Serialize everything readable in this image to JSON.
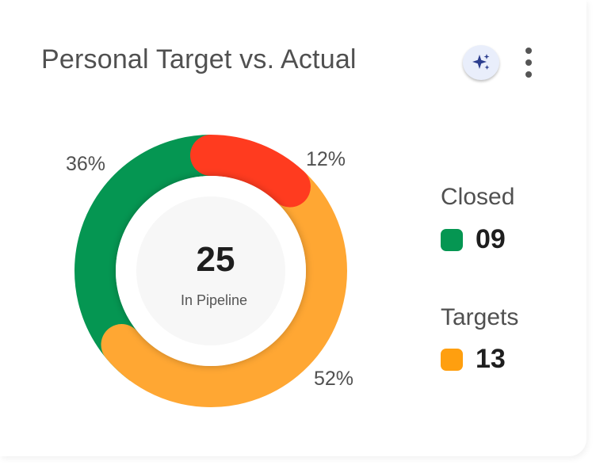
{
  "header": {
    "title": "Personal Target vs. Actual",
    "ai_icon": "sparkles-icon",
    "menu_icon": "kebab-menu-icon"
  },
  "chart_data": {
    "type": "pie",
    "variant": "donut",
    "center_value": "25",
    "center_label": "In Pipeline",
    "slices": [
      {
        "label": "36%",
        "value": 36,
        "color": "#059652"
      },
      {
        "label": "12%",
        "value": 12,
        "color": "#ff3b1f"
      },
      {
        "label": "52%",
        "value": 52,
        "color": "#ffa733"
      }
    ]
  },
  "legend": {
    "closed": {
      "title": "Closed",
      "value": "09",
      "color": "#059652"
    },
    "targets": {
      "title": "Targets",
      "value": "13",
      "color": "#ff9f0f"
    }
  }
}
